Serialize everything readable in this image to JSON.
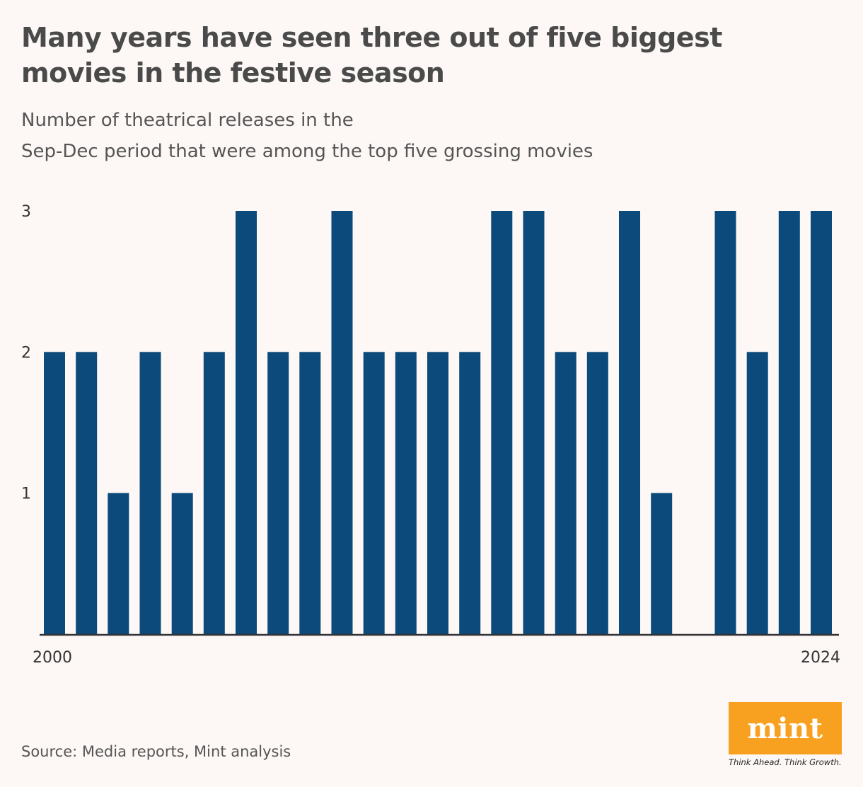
{
  "header": {
    "title": "Many years have seen three out of five biggest movies in the festive season",
    "subtitle_line1": "Number of theatrical releases in the",
    "subtitle_line2": "Sep-Dec period that were among the top five grossing movies"
  },
  "footer": {
    "source": "Source: Media reports, Mint analysis",
    "logo_text": "mint",
    "tagline": "Think Ahead. Think Growth."
  },
  "colors": {
    "bar": "#0b4a7a",
    "axis": "#333333",
    "logo_bg": "#f8a01f"
  },
  "chart_data": {
    "type": "bar",
    "title": "Many years have seen three out of five biggest movies in the festive season",
    "xlabel": "",
    "ylabel": "",
    "categories": [
      "2000",
      "2001",
      "2002",
      "2003",
      "2004",
      "2005",
      "2006",
      "2007",
      "2008",
      "2009",
      "2010",
      "2011",
      "2012",
      "2013",
      "2014",
      "2015",
      "2016",
      "2017",
      "2018",
      "2019",
      "2020",
      "2021",
      "2022",
      "2023",
      "2024"
    ],
    "x_tick_labels": [
      "2000",
      "2024"
    ],
    "values": [
      2,
      2,
      1,
      2,
      1,
      2,
      3,
      2,
      2,
      3,
      2,
      2,
      2,
      2,
      3,
      3,
      2,
      2,
      3,
      1,
      0,
      3,
      2,
      3,
      3
    ],
    "y_ticks": [
      1,
      2,
      3
    ],
    "ylim": [
      0,
      3
    ],
    "grid": false,
    "legend": "none"
  }
}
